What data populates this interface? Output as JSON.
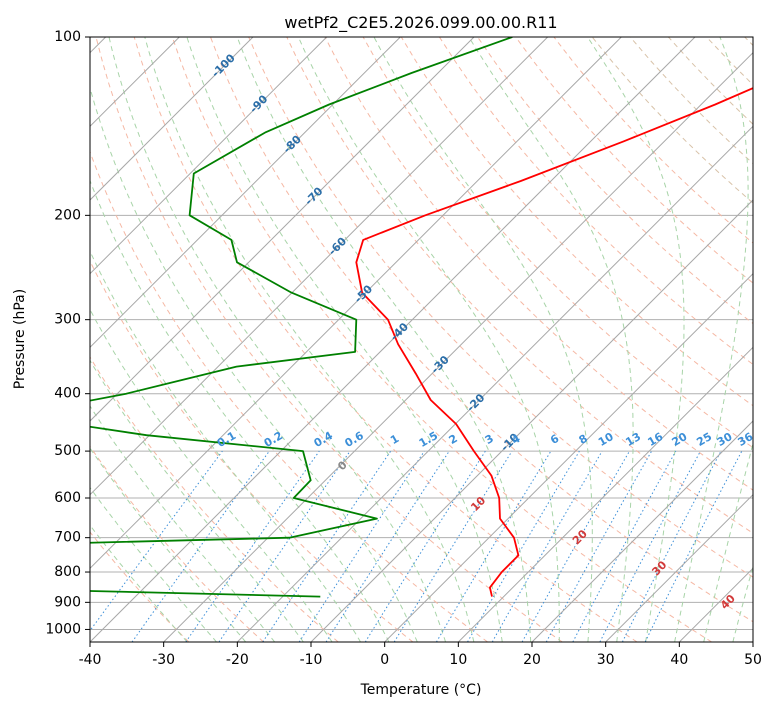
{
  "chart_data": {
    "type": "line",
    "title": "wetPf2_C2E5.2026.099.00.00.R11",
    "xlabel": "Temperature (°C)",
    "ylabel": "Pressure (hPa)",
    "xlim": [
      -40,
      50
    ],
    "ylim": [
      1050,
      100
    ],
    "x_ticks": [
      -40,
      -30,
      -20,
      -10,
      0,
      10,
      20,
      30,
      40,
      50
    ],
    "y_ticks": [
      100,
      200,
      300,
      400,
      500,
      600,
      700,
      800,
      900,
      1000
    ],
    "isotherm_labels": [
      -100,
      -90,
      -80,
      -70,
      -60,
      -50,
      -40,
      -30,
      -20,
      -10
    ],
    "mixing_ratio_labels": [
      0.1,
      0.2,
      0.4,
      0.6,
      1,
      1.5,
      2,
      3,
      4,
      6,
      8,
      10,
      13,
      16,
      20,
      25,
      30,
      36
    ],
    "moist_adiabat_labels": [
      0,
      10,
      20,
      30,
      40
    ],
    "series": [
      {
        "name": "Temperature",
        "color": "#ff0000",
        "points": [
          [
            -15.3,
            100
          ],
          [
            -22.5,
            115
          ],
          [
            -28.1,
            130
          ],
          [
            -35.5,
            150
          ],
          [
            -44.1,
            175
          ],
          [
            -52.4,
            200
          ],
          [
            -57.5,
            220
          ],
          [
            -55.4,
            240
          ],
          [
            -50.5,
            270
          ],
          [
            -43.3,
            300
          ],
          [
            -38.6,
            330
          ],
          [
            -32.2,
            370
          ],
          [
            -26.6,
            410
          ],
          [
            -19.9,
            450
          ],
          [
            -13.8,
            500
          ],
          [
            -8.1,
            550
          ],
          [
            -4.0,
            600
          ],
          [
            -1.1,
            650
          ],
          [
            3.4,
            700
          ],
          [
            6.4,
            750
          ],
          [
            6.4,
            800
          ],
          [
            6.9,
            850
          ],
          [
            8.4,
            880
          ]
        ]
      },
      {
        "name": "Dewpoint",
        "color": "#008000",
        "points": [
          [
            -64.8,
            100
          ],
          [
            -73.6,
            115
          ],
          [
            -80.5,
            130
          ],
          [
            -85.4,
            145
          ],
          [
            -89.5,
            170
          ],
          [
            -84.4,
            200
          ],
          [
            -75.4,
            220
          ],
          [
            -71.6,
            240
          ],
          [
            -60.1,
            270
          ],
          [
            -47.6,
            300
          ],
          [
            -43.4,
            340
          ],
          [
            -57.5,
            360
          ],
          [
            -68.8,
            400
          ],
          [
            -81.2,
            435
          ],
          [
            -60.4,
            470
          ],
          [
            -37.0,
            500
          ],
          [
            -32.0,
            560
          ],
          [
            -31.9,
            600
          ],
          [
            -17.8,
            650
          ],
          [
            -27.1,
            700
          ],
          [
            -64.8,
            720
          ],
          [
            -81.0,
            730
          ],
          [
            -69.9,
            745
          ],
          [
            -88.3,
            760
          ],
          [
            -86.2,
            770
          ],
          [
            -90.0,
            820
          ],
          [
            -49.1,
            860
          ],
          [
            -14.9,
            880
          ]
        ]
      }
    ]
  }
}
